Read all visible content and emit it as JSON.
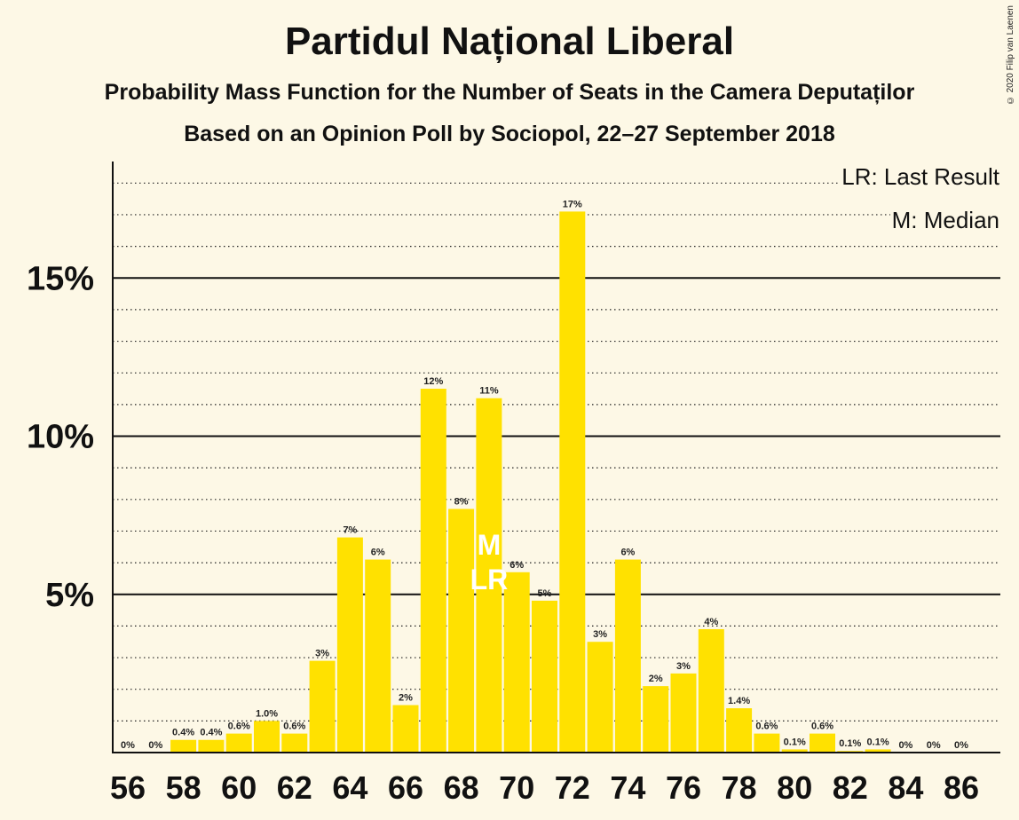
{
  "title": "Partidul Național Liberal",
  "subtitle": "Probability Mass Function for the Number of Seats in the Camera Deputaților",
  "source": "Based on an Opinion Poll by Sociopol, 22–27 September 2018",
  "copyright": "© 2020 Filip van Laenen",
  "legend": {
    "last_result": "LR: Last Result",
    "median": "M: Median"
  },
  "colors": {
    "bar": "#ffe100",
    "background": "#fdf8e6",
    "text": "#111111",
    "marker_text": "#ffffff"
  },
  "chart_data": {
    "type": "bar",
    "x": [
      56,
      57,
      58,
      59,
      60,
      61,
      62,
      63,
      64,
      65,
      66,
      67,
      68,
      69,
      70,
      71,
      72,
      73,
      74,
      75,
      76,
      77,
      78,
      79,
      80,
      81,
      82,
      83,
      84,
      85,
      86
    ],
    "values": [
      0,
      0,
      0.4,
      0.4,
      0.6,
      1.0,
      0.6,
      2.9,
      6.8,
      6.1,
      1.5,
      11.5,
      7.7,
      11.2,
      5.7,
      4.8,
      17.1,
      3.5,
      6.1,
      2.1,
      2.5,
      3.9,
      1.4,
      0.6,
      0.1,
      0.6,
      0.05,
      0.1,
      0,
      0,
      0
    ],
    "labels": [
      "0%",
      "0%",
      "0.4%",
      "0.4%",
      "0.6%",
      "1.0%",
      "0.6%",
      "3%",
      "7%",
      "6%",
      "2%",
      "12%",
      "8%",
      "11%",
      "6%",
      "5%",
      "17%",
      "3%",
      "6%",
      "2%",
      "3%",
      "4%",
      "1.4%",
      "0.6%",
      "0.1%",
      "0.6%",
      "0.1%",
      "0.1%",
      "0%",
      "0%",
      "0%"
    ],
    "x_ticks": [
      56,
      58,
      60,
      62,
      64,
      66,
      68,
      70,
      72,
      74,
      76,
      78,
      80,
      82,
      84,
      86
    ],
    "y_ticks": [
      {
        "value": 5,
        "label": "5%"
      },
      {
        "value": 10,
        "label": "10%"
      },
      {
        "value": 15,
        "label": "15%"
      }
    ],
    "ylim": [
      0,
      18.6
    ],
    "minor_grid_step": 1,
    "median": {
      "x": 69,
      "label": "M"
    },
    "last_result": {
      "x": 69,
      "label": "LR"
    },
    "xlabel": "",
    "ylabel": ""
  }
}
